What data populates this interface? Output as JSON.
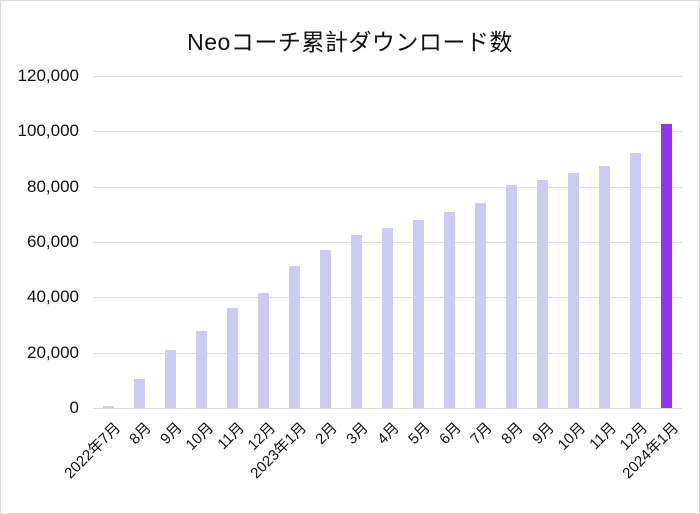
{
  "chart_data": {
    "type": "bar",
    "title": "Neoコーチ累計ダウンロード数",
    "categories": [
      "2022年7月",
      "8月",
      "9月",
      "10月",
      "11月",
      "12月",
      "2023年1月",
      "2月",
      "3月",
      "4月",
      "5月",
      "6月",
      "7月",
      "8月",
      "9月",
      "10月",
      "11月",
      "12月",
      "2024年1月"
    ],
    "values": [
      600,
      10500,
      21000,
      28000,
      36000,
      41500,
      51500,
      57000,
      62500,
      65000,
      68000,
      71000,
      74000,
      80500,
      82500,
      85000,
      87500,
      92000,
      102500
    ],
    "highlight_index": 18,
    "bar_color": "#ccccf2",
    "highlight_color": "#9333ee",
    "gridline_color": "#dedede",
    "axis_line_color": "#d9d9d9",
    "text_color": "#111111",
    "background_color": "#ffffff",
    "xlabel": "",
    "ylabel": "",
    "ylim": [
      0,
      120000
    ],
    "ytick_step": 20000,
    "ytick_labels": [
      "0",
      "20,000",
      "40,000",
      "60,000",
      "80,000",
      "100,000",
      "120,000"
    ],
    "grid": true,
    "legend": "none",
    "x_label_rotation_deg": 45
  }
}
